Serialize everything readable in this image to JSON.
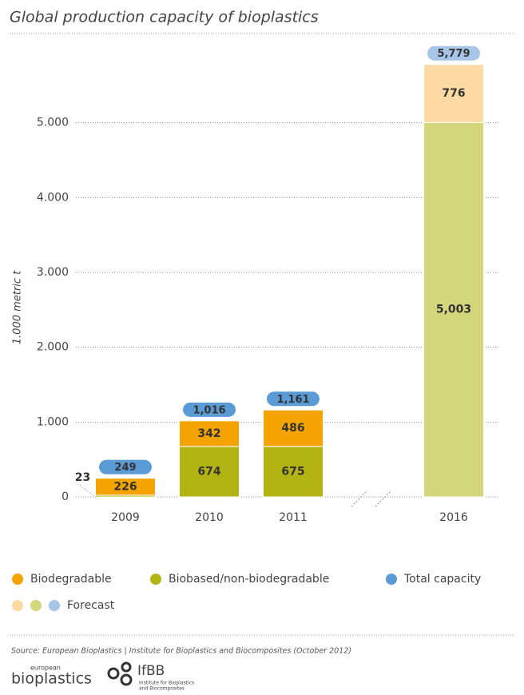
{
  "chart_data": {
    "type": "bar",
    "stacked": true,
    "title": "Global production capacity of bioplastics",
    "y_label": "1.000 metric t",
    "categories": [
      "2009",
      "2010",
      "2011",
      "2016"
    ],
    "forecast": [
      false,
      false,
      false,
      true
    ],
    "forecast_legend": "Forecast",
    "series": [
      {
        "name": "Biodegradable",
        "color": "#f4a300",
        "forecast_color": "#fdd9a3",
        "values": [
          226,
          342,
          486,
          776
        ]
      },
      {
        "name": "Biobased/non-biodegradable",
        "color": "#b3b414",
        "forecast_color": "#d4d67c",
        "values": [
          23,
          674,
          675,
          5003
        ],
        "value_labels": [
          "23",
          "674",
          "675",
          "5,003"
        ]
      }
    ],
    "totals": {
      "name": "Total capacity",
      "color": "#5b9bd5",
      "forecast_color": "#a7c6e7",
      "values": [
        249,
        1016,
        1161,
        5779
      ],
      "value_labels": [
        "249",
        "1,016",
        "1,161",
        "5,779"
      ]
    },
    "ylim": [
      0,
      6000
    ],
    "yticks": [
      0,
      {
        "value": 1000,
        "label": "1.000"
      },
      {
        "value": 2000,
        "label": "2.000"
      },
      {
        "value": 3000,
        "label": "3.000"
      },
      {
        "value": 4000,
        "label": "4.000"
      },
      {
        "value": 5000,
        "label": "5.000"
      }
    ],
    "grid": true
  },
  "footer": {
    "source": "Source: European Bioplastics | Institute for Bioplastics and Biocomposites (October 2012)",
    "logo1": [
      "european",
      "bioplastics"
    ],
    "logo2": [
      "IfBB",
      "Institute for Bioplastics",
      "and Biocomposites"
    ]
  }
}
